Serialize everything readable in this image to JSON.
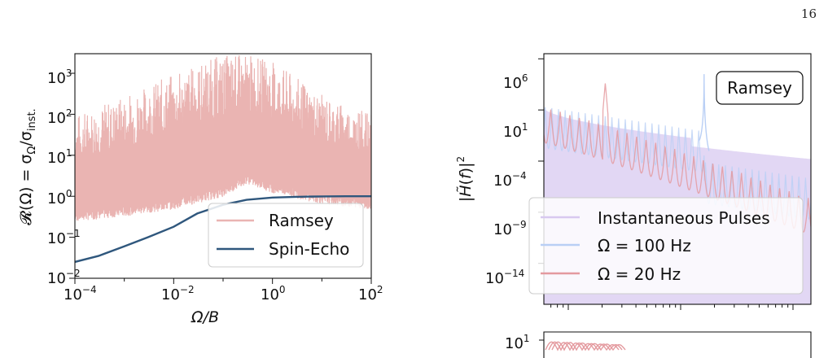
{
  "page_number": "16",
  "colors": {
    "ramsey": "#eab4b2",
    "spin_echo": "#2f577d",
    "instantaneous": "#d8c9f0",
    "omega100": "#b9cff5",
    "omega20": "#e49a9f",
    "axes": "#111111"
  },
  "chart_data": [
    {
      "type": "line",
      "title": "",
      "xlabel": "Ω/B",
      "ylabel": "𝓡(Ω) = σ_Ω/σ_inst.",
      "xscale": "log",
      "yscale": "log",
      "xlim": [
        0.0001,
        100
      ],
      "ylim": [
        0.01,
        3000
      ],
      "xticks": [
        "10^-4",
        "10^-2",
        "10^0",
        "10^2"
      ],
      "yticks": [
        "10^-2",
        "10^-1",
        "10^0",
        "10^1",
        "10^2",
        "10^3"
      ],
      "legend_position": "lower-right",
      "grid": false,
      "series": [
        {
          "name": "Ramsey",
          "description_values": "dense oscillating band",
          "x": [
            0.0001,
            0.001,
            0.01,
            0.1,
            0.3,
            1,
            10,
            100
          ],
          "y_lower": [
            0.3,
            0.4,
            0.6,
            1.2,
            2.5,
            1.5,
            0.8,
            0.6
          ],
          "y_upper": [
            100,
            300,
            1000,
            3000,
            3000,
            2000,
            300,
            100
          ]
        },
        {
          "name": "Spin-Echo",
          "x": [
            0.0001,
            0.0003,
            0.001,
            0.003,
            0.01,
            0.03,
            0.1,
            0.3,
            1,
            3,
            10,
            30,
            100
          ],
          "y": [
            0.025,
            0.035,
            0.06,
            0.1,
            0.18,
            0.38,
            0.62,
            0.82,
            0.93,
            0.97,
            0.99,
            1.0,
            1.0
          ]
        }
      ]
    },
    {
      "type": "line",
      "title": "",
      "annotation": "Ramsey",
      "xlabel": "",
      "ylabel": "|H̃(f)|²",
      "xscale": "log",
      "yscale": "log",
      "ylim": [
        1e-18,
        1000000.0
      ],
      "yticks": [
        "10^6",
        "10^1",
        "10^-4",
        "10^-9",
        "10^-14"
      ],
      "legend_position": "lower-left",
      "grid": false,
      "series": [
        {
          "name": "Instantaneous Pulses",
          "trend": [
            1,
            0.1,
            0.01,
            0.001,
            0.0001,
            1e-05
          ]
        },
        {
          "name": "Ω = 100 Hz",
          "peak_value": 30000
        },
        {
          "name": "Ω = 20 Hz",
          "peak_value": 3000
        }
      ]
    },
    {
      "type": "line",
      "title": "",
      "ylabel": "",
      "yticks": [
        "10^1"
      ],
      "series": []
    }
  ]
}
